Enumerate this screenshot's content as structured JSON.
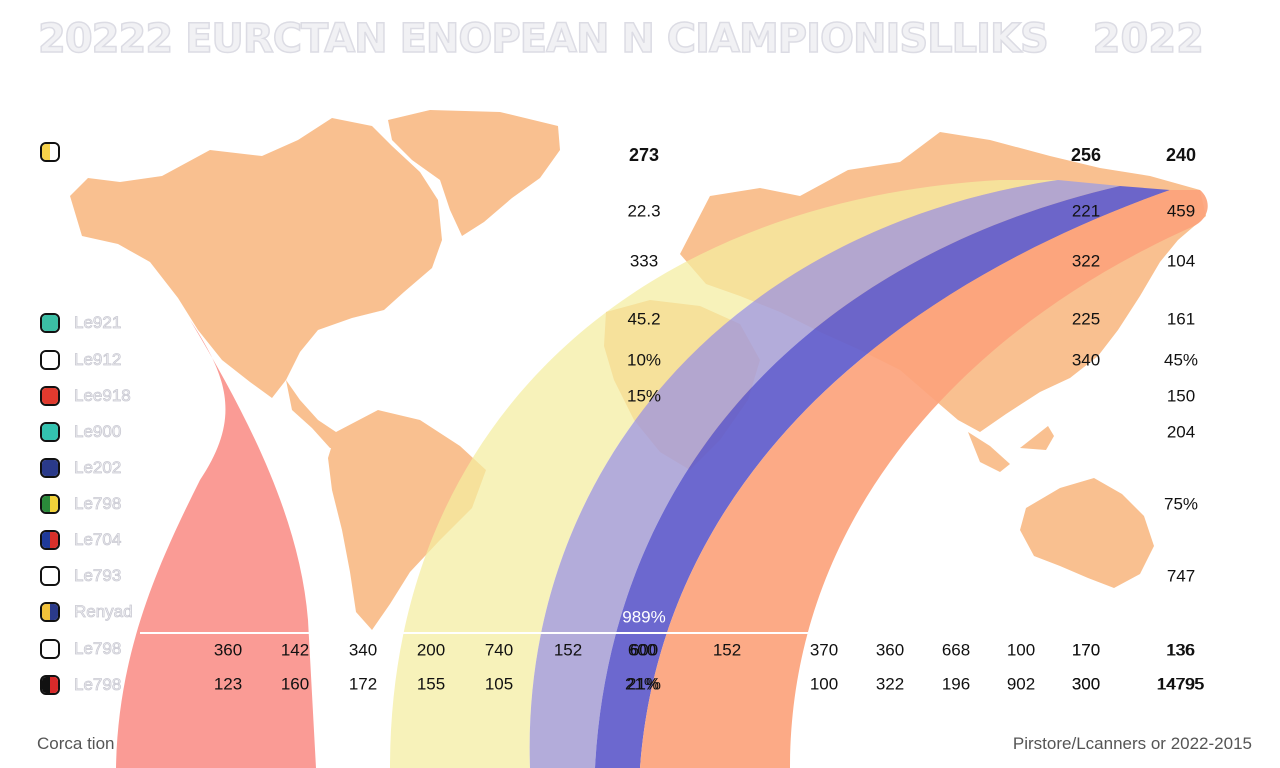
{
  "header": {
    "title": "20222 EURCTAN ENOPEAN N CIAMPIONISLLIKS",
    "year": "2022"
  },
  "legend": [
    {
      "label": "",
      "colors": [
        "#f7d24a",
        "#ffffff"
      ]
    },
    {
      "label": "Le921",
      "colors": [
        "#3bbfa5"
      ]
    },
    {
      "label": "Le912",
      "colors": [
        "#ffffff"
      ]
    },
    {
      "label": "Lee918",
      "colors": [
        "#e03a2e"
      ]
    },
    {
      "label": "Le900",
      "colors": [
        "#33c3b0"
      ]
    },
    {
      "label": "Le202",
      "colors": [
        "#2a3a8a"
      ]
    },
    {
      "label": "Le798",
      "colors": [
        "#2a8a3a",
        "#f2d23a"
      ]
    },
    {
      "label": "Le704",
      "colors": [
        "#1f3a9a",
        "#d8302a"
      ]
    },
    {
      "label": "Le793",
      "colors": [
        "#ffffff"
      ]
    },
    {
      "label": "Renyad",
      "colors": [
        "#f2c23a",
        "#2a3a8a"
      ]
    },
    {
      "label": "Le798",
      "colors": [
        "#ffffff"
      ]
    },
    {
      "label": "Le798",
      "colors": [
        "#111111",
        "#d82a2a"
      ]
    }
  ],
  "chart_data": {
    "type": "table",
    "title": "20222 EURCTAN ENOPEAN N CIAMPIONISLLIKS 2022",
    "column_values": [
      {
        "col": 1,
        "cells": [
          {
            "row": 0,
            "text": "273",
            "bold": true
          },
          {
            "row": 1,
            "text": "22.3"
          },
          {
            "row": 2,
            "text": "333"
          },
          {
            "row": 3,
            "text": "45.2"
          },
          {
            "row": 4,
            "text": "10%"
          },
          {
            "row": 5,
            "text": "15%"
          },
          {
            "row": 9,
            "text": "989%",
            "white": true
          },
          {
            "row": 10,
            "text": "600"
          },
          {
            "row": 11,
            "text": "21%"
          }
        ]
      },
      {
        "col": 2,
        "cells": [
          {
            "row": 0,
            "text": "256",
            "bold": true
          },
          {
            "row": 1,
            "text": "221"
          },
          {
            "row": 2,
            "text": "322"
          },
          {
            "row": 3,
            "text": "225"
          },
          {
            "row": 4,
            "text": "340"
          },
          {
            "row": 10,
            "text": "170"
          },
          {
            "row": 11,
            "text": "300"
          }
        ]
      },
      {
        "col": 3,
        "cells": [
          {
            "row": 0,
            "text": "240",
            "bold": true
          },
          {
            "row": 1,
            "text": "459"
          },
          {
            "row": 2,
            "text": "104"
          },
          {
            "row": 3,
            "text": "161"
          },
          {
            "row": 4,
            "text": "45%"
          },
          {
            "row": 5,
            "text": "150"
          },
          {
            "row": 6,
            "text": "204"
          },
          {
            "row": 7,
            "text": "75%"
          },
          {
            "row": 8,
            "text": "747"
          },
          {
            "row": 10,
            "text": "136"
          },
          {
            "row": 11,
            "text": "14795"
          }
        ]
      }
    ],
    "bottom_rows": [
      [
        "360",
        "142",
        "340",
        "200",
        "740",
        "152",
        "600",
        "152",
        "370",
        "360",
        "668",
        "100",
        "170",
        "136"
      ],
      [
        "123",
        "160",
        "172",
        "155",
        "105",
        "",
        "21%",
        "",
        "100",
        "322",
        "196",
        "902",
        "300",
        "14795"
      ]
    ],
    "bands": [
      {
        "color": "#f9908a"
      },
      {
        "color": "#f4eda0"
      },
      {
        "color": "#aba3d6"
      },
      {
        "color": "#6460cc"
      },
      {
        "color": "#fca37c"
      }
    ],
    "map_color": "#f9c090"
  },
  "footer": {
    "left": "Corca tion",
    "right": "Pirstore/Lcanners or 2022-2015"
  }
}
